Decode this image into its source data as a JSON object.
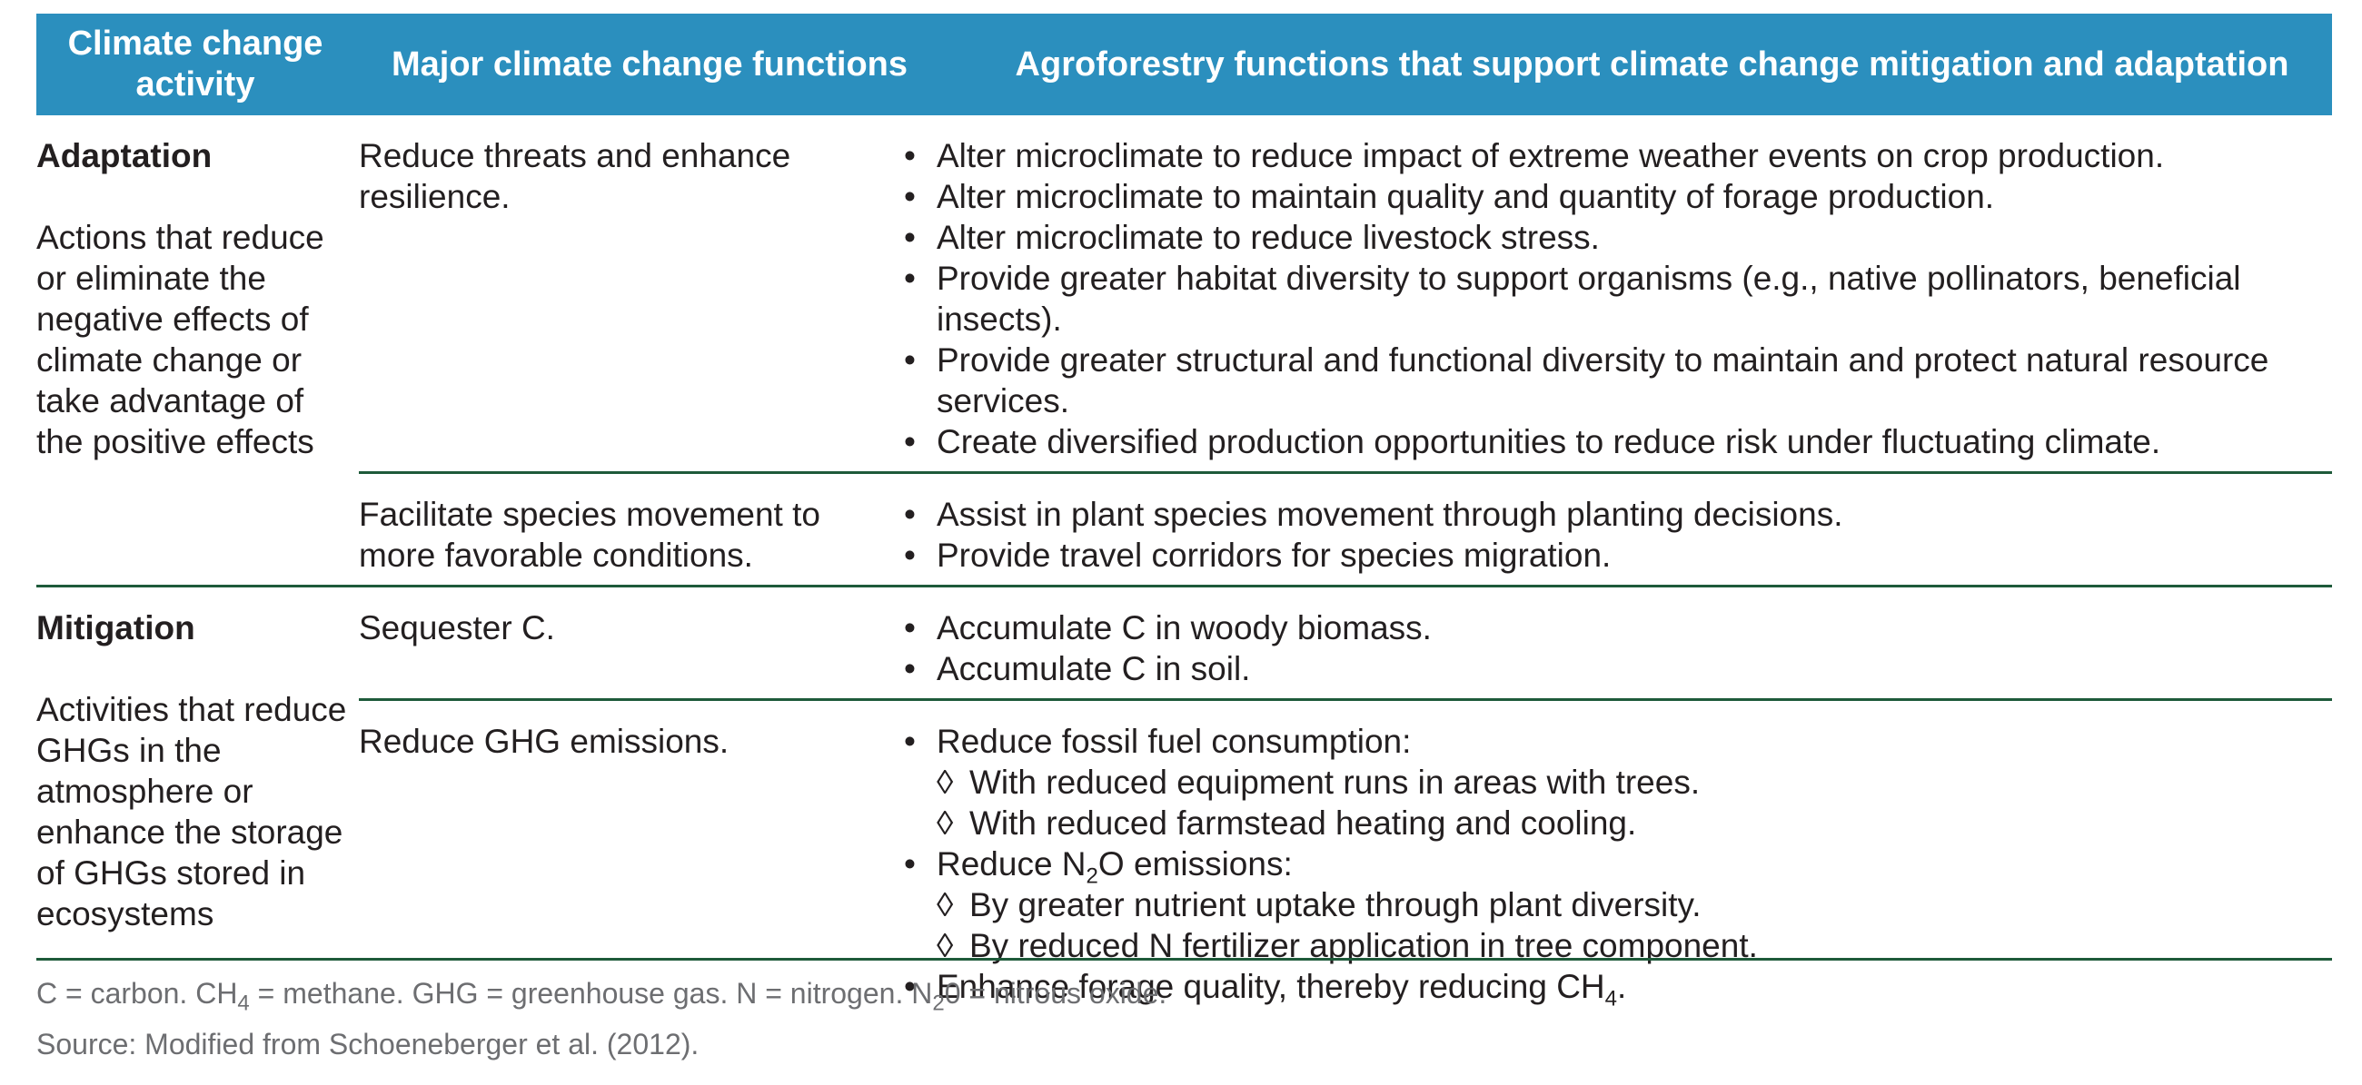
{
  "headers": {
    "col1": "Climate change activity",
    "col2": "Major climate change functions",
    "col3": "Agroforestry functions that support climate change mitigation and adaptation"
  },
  "adaptation": {
    "title": "Adaptation",
    "desc": "Actions that reduce or eliminate the negative effects of climate change or take advantage of the positive effects",
    "rows": [
      {
        "function": "Reduce threats and enhance resilience.",
        "bullets": [
          "Alter microclimate to reduce impact of extreme weather events on crop production.",
          "Alter microclimate to maintain quality and quantity of forage production.",
          "Alter microclimate to reduce livestock stress.",
          "Provide greater habitat diversity to support organisms (e.g., native pollinators, beneficial insects).",
          "Provide greater structural and functional diversity to maintain and protect natural resource services.",
          "Create diversified production opportunities to reduce risk under fluctuating climate."
        ]
      },
      {
        "function": "Facilitate species movement to more favorable conditions.",
        "bullets": [
          "Assist in plant species movement through planting decisions.",
          "Provide travel corridors for species migration."
        ]
      }
    ]
  },
  "mitigation": {
    "title": "Mitigation",
    "desc": "Activities that reduce GHGs in the atmosphere or enhance the storage of GHGs stored in ecosystems",
    "row1": {
      "function": "Sequester C.",
      "bullets": [
        "Accumulate C in woody biomass.",
        "Accumulate C in soil."
      ]
    },
    "row2": {
      "function": "Reduce GHG emissions.",
      "b1": "Reduce fossil fuel consumption:",
      "b1_sub": [
        "With reduced equipment runs in areas with trees.",
        "With reduced farmstead heating and cooling."
      ],
      "b2_pre": "Reduce N",
      "b2_sub": "2",
      "b2_post": "O emissions:",
      "b2_subitems": [
        "By greater nutrient uptake through plant diversity.",
        "By reduced N fertilizer application in tree component."
      ],
      "b3_pre": "Enhance forage quality, thereby reducing CH",
      "b3_sub": "4",
      "b3_post": "."
    }
  },
  "footer": {
    "abbr_a": "C = carbon. CH",
    "abbr_a_sub": "4",
    "abbr_b": " = methane. GHG = greenhouse gas. N = nitrogen. N",
    "abbr_b_sub": "2",
    "abbr_c": "0 = nitrous oxide.",
    "source": "Source: Modified from Schoeneberger et al. (2012)."
  },
  "symbols": {
    "bullet": "•",
    "diamond": "◊"
  }
}
